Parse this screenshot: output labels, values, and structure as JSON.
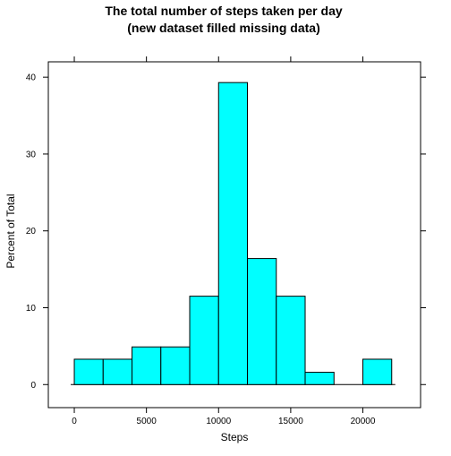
{
  "chart_data": {
    "type": "bar",
    "title": "The total number of steps taken per day",
    "subtitle": "(new dataset filled missing data)",
    "xlabel": "Steps",
    "ylabel": "Percent of Total",
    "bin_edges": [
      0,
      2000,
      4000,
      6000,
      8000,
      10000,
      12000,
      14000,
      16000,
      18000,
      20000,
      22000
    ],
    "values": [
      3.3,
      3.3,
      4.9,
      4.9,
      11.5,
      39.3,
      16.4,
      11.5,
      1.6,
      0,
      3.3
    ],
    "xlim": [
      -1800,
      24000
    ],
    "ylim": [
      -3.0,
      42.0
    ],
    "x_ticks": [
      0,
      5000,
      10000,
      15000,
      20000
    ],
    "x_tick_labels": [
      "0",
      "5000",
      "10000",
      "15000",
      "20000"
    ],
    "y_ticks": [
      0,
      10,
      20,
      30,
      40
    ],
    "y_tick_labels": [
      "0",
      "10",
      "20",
      "30",
      "40"
    ],
    "bar_color": "#00FFFF",
    "bar_edge_color": "#000000",
    "grid": false
  }
}
